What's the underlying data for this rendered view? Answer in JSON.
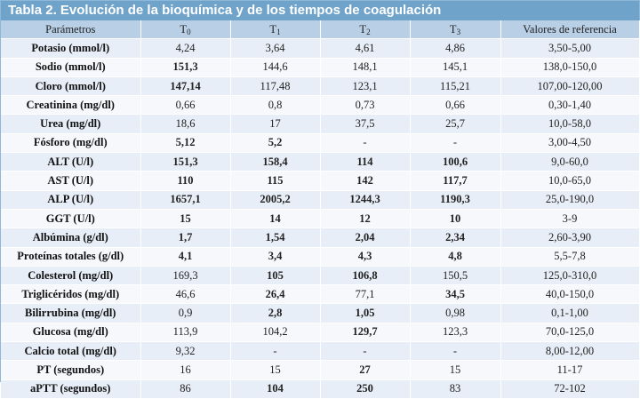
{
  "title": "Tabla 2. Evolución de la bioquímica y de los tiempos de coagulación",
  "headers": [
    "Parámetros",
    "T",
    "T",
    "T",
    "T",
    "Valores de referencia"
  ],
  "header_subscripts": [
    "",
    "0",
    "1",
    "2",
    "3",
    ""
  ],
  "rows": [
    {
      "param": "Potasio (mmol/l)",
      "cells": [
        [
          "4,24",
          false
        ],
        [
          "3,64",
          false
        ],
        [
          "4,61",
          false
        ],
        [
          "4,86",
          false
        ]
      ],
      "ref": "3,50-5,00"
    },
    {
      "param": "Sodio (mmol/l)",
      "cells": [
        [
          "151,3",
          true
        ],
        [
          "144,6",
          false
        ],
        [
          "148,1",
          false
        ],
        [
          "145,1",
          false
        ]
      ],
      "ref": "138,0-150,0"
    },
    {
      "param": "Cloro (mmol/l)",
      "cells": [
        [
          "147,14",
          true
        ],
        [
          "117,48",
          false
        ],
        [
          "123,1",
          false
        ],
        [
          "115,21",
          false
        ]
      ],
      "ref": "107,00-120,00"
    },
    {
      "param": "Creatinina (mg/dl)",
      "cells": [
        [
          "0,66",
          false
        ],
        [
          "0,8",
          false
        ],
        [
          "0,73",
          false
        ],
        [
          "0,66",
          false
        ]
      ],
      "ref": "0,30-1,40"
    },
    {
      "param": "Urea (mg/dl)",
      "cells": [
        [
          "18,6",
          false
        ],
        [
          "17",
          false
        ],
        [
          "37,5",
          false
        ],
        [
          "25,7",
          false
        ]
      ],
      "ref": "10,0-58,0"
    },
    {
      "param": "Fósforo (mg/dl)",
      "cells": [
        [
          "5,12",
          true
        ],
        [
          "5,2",
          true
        ],
        [
          "-",
          false
        ],
        [
          "-",
          false
        ]
      ],
      "ref": "3,00-4,50"
    },
    {
      "param": "ALT (U/l)",
      "cells": [
        [
          "151,3",
          true
        ],
        [
          "158,4",
          true
        ],
        [
          "114",
          true
        ],
        [
          "100,6",
          true
        ]
      ],
      "ref": "9,0-60,0"
    },
    {
      "param": "AST (U/l)",
      "cells": [
        [
          "110",
          true
        ],
        [
          "115",
          true
        ],
        [
          "142",
          true
        ],
        [
          "117,7",
          true
        ]
      ],
      "ref": "10,0-65,0"
    },
    {
      "param": "ALP (U/l)",
      "cells": [
        [
          "1657,1",
          true
        ],
        [
          "2005,2",
          true
        ],
        [
          "1244,3",
          true
        ],
        [
          "1190,3",
          true
        ]
      ],
      "ref": "25,0-190,0"
    },
    {
      "param": "GGT (U/l)",
      "cells": [
        [
          "15",
          true
        ],
        [
          "14",
          true
        ],
        [
          "12",
          true
        ],
        [
          "10",
          true
        ]
      ],
      "ref": "3-9"
    },
    {
      "param": "Albúmina (g/dl)",
      "cells": [
        [
          "1,7",
          true
        ],
        [
          "1,54",
          true
        ],
        [
          "2,04",
          true
        ],
        [
          "2,34",
          true
        ]
      ],
      "ref": "2,60-3,90"
    },
    {
      "param": "Proteínas totales (g/dl)",
      "cells": [
        [
          "4,1",
          true
        ],
        [
          "3,4",
          true
        ],
        [
          "4,3",
          true
        ],
        [
          "4,8",
          true
        ]
      ],
      "ref": "5,5-7,8"
    },
    {
      "param": "Colesterol (mg/dl)",
      "cells": [
        [
          "169,3",
          false
        ],
        [
          "105",
          true
        ],
        [
          "106,8",
          true
        ],
        [
          "150,5",
          false
        ]
      ],
      "ref": "125,0-310,0"
    },
    {
      "param": "Triglicéridos (mg/dl)",
      "cells": [
        [
          "46,6",
          false
        ],
        [
          "26,4",
          true
        ],
        [
          "77,1",
          false
        ],
        [
          "34,5",
          true
        ]
      ],
      "ref": "40,0-150,0"
    },
    {
      "param": "Bilirrubina (mg/dl)",
      "cells": [
        [
          "0,9",
          false
        ],
        [
          "2,8",
          true
        ],
        [
          "1,05",
          true
        ],
        [
          "0,98",
          false
        ]
      ],
      "ref": "0,1-1,00"
    },
    {
      "param": "Glucosa (mg/dl)",
      "cells": [
        [
          "113,9",
          false
        ],
        [
          "104,2",
          false
        ],
        [
          "129,7",
          true
        ],
        [
          "123,3",
          false
        ]
      ],
      "ref": "70,0-125,0"
    },
    {
      "param": "Calcio total (mg/dl)",
      "cells": [
        [
          "9,32",
          false
        ],
        [
          "-",
          false
        ],
        [
          "-",
          false
        ],
        [
          "-",
          false
        ]
      ],
      "ref": "8,00-12,00"
    },
    {
      "param": "PT (segundos)",
      "cells": [
        [
          "16",
          false
        ],
        [
          "15",
          false
        ],
        [
          "27",
          true
        ],
        [
          "15",
          false
        ]
      ],
      "ref": "11-17"
    },
    {
      "param": "aPTT (segundos)",
      "cells": [
        [
          "86",
          false
        ],
        [
          "104",
          true
        ],
        [
          "250",
          true
        ],
        [
          "83",
          false
        ]
      ],
      "ref": "72-102"
    }
  ]
}
